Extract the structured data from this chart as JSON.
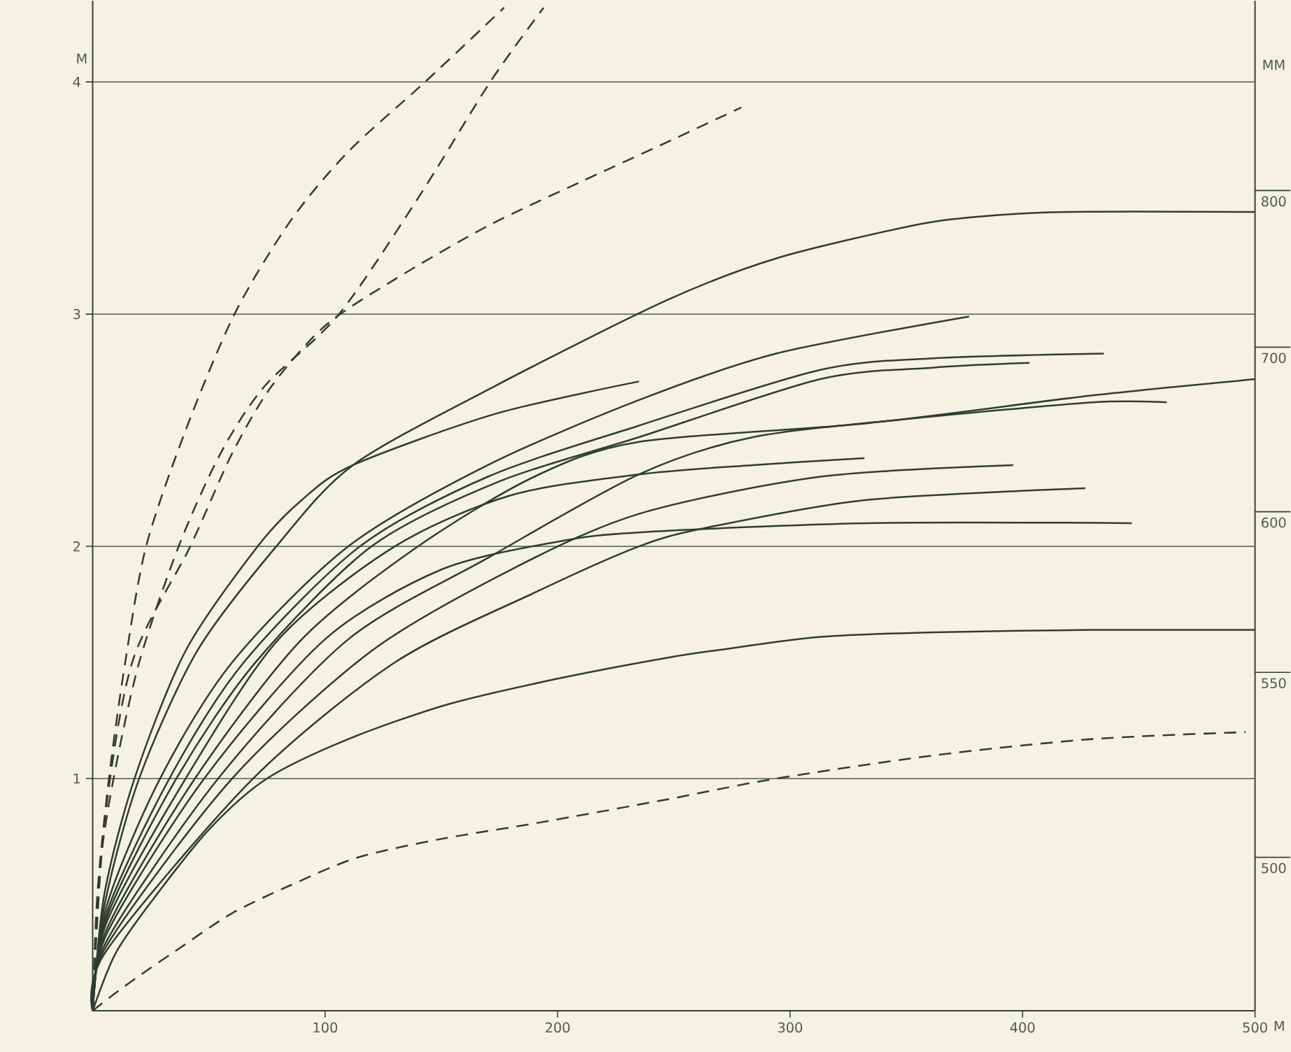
{
  "chart_data": {
    "type": "line",
    "xlabel": "M",
    "ylabel": "M",
    "annotations": [
      "MM",
      "800",
      "700",
      "600",
      "550",
      "500"
    ],
    "xlim": [
      0,
      500
    ],
    "xticks": [
      100,
      200,
      300,
      400,
      500
    ],
    "ylim": [
      0,
      4.35
    ],
    "yticks": [
      1,
      2,
      3,
      4
    ],
    "grid": "y",
    "marker": "none",
    "series": [
      {
        "color": "#2f3d33",
        "line_style": "solid",
        "x": [
          0,
          5,
          20,
          45,
          79,
          112,
          173,
          247,
          294,
          352,
          381,
          420,
          500
        ],
        "values": [
          0,
          0.45,
          1.0,
          1.55,
          2.0,
          2.35,
          2.69,
          3.06,
          3.24,
          3.38,
          3.42,
          3.44,
          3.44
        ]
      },
      {
        "color": "#2f3d33",
        "line_style": "solid",
        "x": [
          0,
          5,
          18,
          40,
          71,
          90,
          112,
          173,
          235
        ],
        "values": [
          0,
          0.5,
          1.0,
          1.55,
          2.0,
          2.2,
          2.35,
          2.57,
          2.71
        ]
      },
      {
        "color": "#2f3d33",
        "line_style": "solid",
        "x": [
          0,
          6,
          29,
          60,
          110,
          170,
          235,
          294,
          377
        ],
        "values": [
          0,
          0.45,
          1.0,
          1.5,
          2.0,
          2.35,
          2.63,
          2.83,
          2.99
        ]
      },
      {
        "color": "#2f3d33",
        "line_style": "solid",
        "x": [
          0,
          6,
          33,
          65,
          115,
          170,
          235,
          313,
          362,
          435
        ],
        "values": [
          0,
          0.42,
          1.0,
          1.5,
          2.0,
          2.3,
          2.52,
          2.76,
          2.81,
          2.83
        ]
      },
      {
        "color": "#2f3d33",
        "line_style": "solid",
        "x": [
          0,
          6,
          36,
          70,
          120,
          175,
          235,
          313,
          362,
          403
        ],
        "values": [
          0,
          0.4,
          1.0,
          1.5,
          2.0,
          2.28,
          2.47,
          2.72,
          2.77,
          2.79
        ]
      },
      {
        "color": "#2f3d33",
        "line_style": "solid",
        "x": [
          0,
          6,
          40,
          80,
          130,
          180,
          235,
          284,
          332
        ],
        "values": [
          0,
          0.38,
          1.0,
          1.6,
          2.0,
          2.22,
          2.31,
          2.35,
          2.38
        ]
      },
      {
        "color": "#2f3d33",
        "line_style": "solid",
        "x": [
          0,
          6,
          44,
          90,
          140,
          190,
          235,
          333,
          430,
          500
        ],
        "values": [
          0,
          0.35,
          1.0,
          1.6,
          2.0,
          2.3,
          2.45,
          2.53,
          2.65,
          2.72
        ]
      },
      {
        "color": "#2f3d33",
        "line_style": "solid",
        "x": [
          0,
          6,
          48,
          100,
          150,
          200,
          235,
          333,
          447
        ],
        "values": [
          0,
          0.33,
          1.0,
          1.6,
          1.9,
          2.02,
          2.06,
          2.1,
          2.1
        ]
      },
      {
        "color": "#2f3d33",
        "line_style": "solid",
        "x": [
          0,
          6,
          54,
          110,
          170,
          235,
          284,
          352,
          430,
          462
        ],
        "values": [
          0,
          0.3,
          1.0,
          1.6,
          1.95,
          2.31,
          2.47,
          2.55,
          2.62,
          2.62
        ]
      },
      {
        "color": "#2f3d33",
        "line_style": "solid",
        "x": [
          0,
          6,
          60,
          120,
          180,
          235,
          313,
          396
        ],
        "values": [
          0,
          0.28,
          1.0,
          1.55,
          1.9,
          2.14,
          2.3,
          2.35
        ]
      },
      {
        "color": "#2f3d33",
        "line_style": "solid",
        "x": [
          0,
          6,
          69,
          130,
          190,
          235,
          264,
          333,
          427
        ],
        "values": [
          0,
          0.26,
          1.0,
          1.5,
          1.8,
          2.0,
          2.08,
          2.2,
          2.25
        ]
      },
      {
        "color": "#2f3d33",
        "line_style": "solid",
        "x": [
          0,
          10,
          26,
          50,
          75,
          110,
          153,
          200,
          247,
          274,
          313,
          362,
          430,
          500
        ],
        "values": [
          0,
          0.25,
          0.48,
          0.78,
          1.0,
          1.17,
          1.32,
          1.43,
          1.52,
          1.56,
          1.61,
          1.63,
          1.64,
          1.64
        ]
      },
      {
        "color": "#2f3d33",
        "line_style": "dashed",
        "x": [
          0,
          2,
          7,
          14,
          23,
          40,
          61,
          85,
          110,
          143,
          177
        ],
        "values": [
          0,
          0.5,
          1.0,
          1.5,
          2.0,
          2.5,
          3.0,
          3.4,
          3.7,
          4.0,
          4.32
        ]
      },
      {
        "color": "#2f3d33",
        "line_style": "dashed",
        "x": [
          0,
          3,
          9,
          20,
          37,
          55,
          74,
          106,
          140,
          171,
          194
        ],
        "values": [
          0,
          0.6,
          1.0,
          1.5,
          2.0,
          2.4,
          2.69,
          3.0,
          3.5,
          4.0,
          4.32
        ]
      },
      {
        "color": "#2f3d33",
        "line_style": "dashed",
        "x": [
          0,
          5,
          17,
          42,
          60,
          77,
          100,
          130,
          170,
          210,
          247,
          279
        ],
        "values": [
          0,
          0.8,
          1.5,
          2.0,
          2.4,
          2.69,
          2.95,
          3.15,
          3.38,
          3.57,
          3.74,
          3.89
        ]
      },
      {
        "color": "#2f3d33",
        "line_style": "dashed",
        "x": [
          0,
          9,
          20,
          36,
          60,
          85,
          114,
          150,
          192,
          247,
          294,
          362,
          430,
          496
        ],
        "values": [
          0,
          0.07,
          0.15,
          0.26,
          0.42,
          0.54,
          0.66,
          0.74,
          0.81,
          0.91,
          1.0,
          1.1,
          1.17,
          1.2
        ]
      }
    ]
  }
}
